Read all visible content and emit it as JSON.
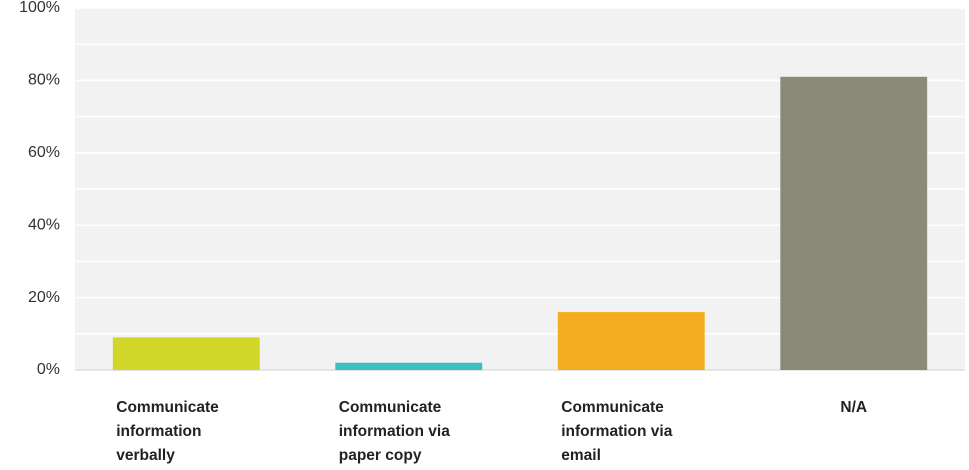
{
  "chart_data": {
    "type": "bar",
    "categories": [
      "Communicate information verbally",
      "Communicate information via paper copy",
      "Communicate information via email",
      "N/A"
    ],
    "values": [
      9,
      2,
      16,
      81
    ],
    "colors": [
      "#d0d62a",
      "#3bbfbf",
      "#f5ad1f",
      "#8a8a78"
    ],
    "ylim": [
      0,
      100
    ],
    "yticks": [
      {
        "value": 0,
        "label": "0%"
      },
      {
        "value": 20,
        "label": "20%"
      },
      {
        "value": 40,
        "label": "40%"
      },
      {
        "value": 60,
        "label": "60%"
      },
      {
        "value": 80,
        "label": "80%"
      },
      {
        "value": 100,
        "label": "100%"
      }
    ],
    "minor_yticks": [
      10,
      30,
      50,
      70,
      90
    ],
    "grid": true
  }
}
